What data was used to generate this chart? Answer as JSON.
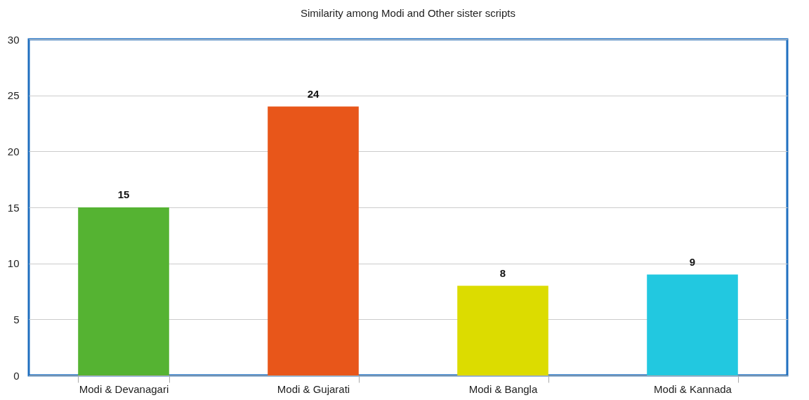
{
  "chart_data": {
    "type": "bar",
    "title": "Similarity among Modi and Other sister scripts",
    "categories": [
      "Modi & Devanagari",
      "Modi & Gujarati",
      "Modi & Bangla",
      "Modi & Kannada"
    ],
    "values": [
      15,
      24,
      8,
      9
    ],
    "colors": [
      "#55b332",
      "#e8561a",
      "#dcdc00",
      "#22c8e0"
    ],
    "ylim": [
      0,
      30
    ],
    "yticks": [
      0,
      5,
      10,
      15,
      20,
      25,
      30
    ],
    "grid": "y",
    "data_labels": true
  }
}
